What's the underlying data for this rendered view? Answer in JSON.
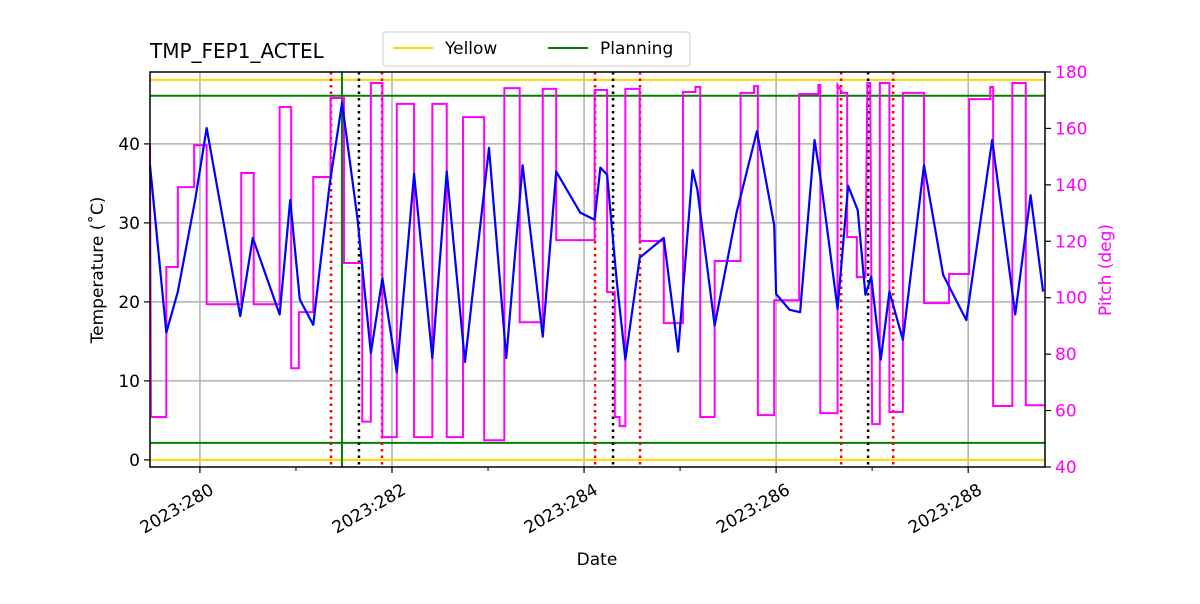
{
  "chart_data": {
    "type": "line",
    "title": "TMP_FEP1_ACTEL",
    "xlabel": "Date",
    "ylabel": "Temperature (˚C)",
    "y2label": "Pitch (deg)",
    "xlim": [
      279.48,
      288.8
    ],
    "ylim": [
      -0.9,
      49.1
    ],
    "y2lim": [
      40,
      180
    ],
    "grid": true,
    "legend_placement": "top-center",
    "x_ticks": [
      280,
      282,
      284,
      286,
      288
    ],
    "x_tick_labels": [
      "2023:280",
      "2023:282",
      "2023:284",
      "2023:286",
      "2023:288"
    ],
    "x_minor_ticks": [
      281,
      283,
      285,
      287
    ],
    "y_ticks": [
      0,
      10,
      20,
      30,
      40
    ],
    "y_tick_labels": [
      "0",
      "10",
      "20",
      "30",
      "40"
    ],
    "y2_ticks": [
      40,
      60,
      80,
      100,
      120,
      140,
      160,
      180
    ],
    "y2_tick_labels": [
      "40",
      "60",
      "80",
      "100",
      "120",
      "140",
      "160",
      "180"
    ],
    "colors": {
      "temperature": "#0000ff",
      "pitch": "#ff00ff",
      "yellow": "#ffd700",
      "planning": "#008000",
      "red_marker": "#ff0000",
      "black_marker": "#000000"
    },
    "legend": [
      {
        "name": "Yellow",
        "color": "#ffd700"
      },
      {
        "name": "Planning",
        "color": "#008000"
      }
    ],
    "limit_lines": {
      "yellow": [
        0,
        48.1
      ],
      "planning": [
        2.15,
        46.1
      ]
    },
    "vertical_lines": {
      "planning": [
        281.479
      ],
      "red_dotted": [
        281.365,
        281.896,
        284.115,
        284.583,
        286.677,
        287.219
      ],
      "black_dotted": [
        281.656,
        284.302,
        286.958
      ]
    },
    "temperature": [
      [
        279.48,
        37.3
      ],
      [
        279.65,
        16.1
      ],
      [
        279.77,
        21.3
      ],
      [
        279.95,
        32.9
      ],
      [
        280.07,
        42.0
      ],
      [
        280.42,
        18.2
      ],
      [
        280.55,
        28.1
      ],
      [
        280.83,
        18.4
      ],
      [
        280.94,
        32.9
      ],
      [
        281.04,
        20.3
      ],
      [
        281.18,
        17.1
      ],
      [
        281.35,
        34.8
      ],
      [
        281.48,
        45.2
      ],
      [
        281.64,
        30.6
      ],
      [
        281.78,
        13.5
      ],
      [
        281.9,
        23.0
      ],
      [
        282.05,
        11.1
      ],
      [
        282.23,
        36.2
      ],
      [
        282.42,
        12.9
      ],
      [
        282.57,
        36.5
      ],
      [
        282.76,
        12.4
      ],
      [
        283.01,
        39.5
      ],
      [
        283.19,
        12.9
      ],
      [
        283.36,
        37.3
      ],
      [
        283.57,
        15.6
      ],
      [
        283.71,
        36.5
      ],
      [
        283.96,
        31.3
      ],
      [
        284.11,
        30.4
      ],
      [
        284.17,
        37.0
      ],
      [
        284.24,
        36.1
      ],
      [
        284.34,
        22.7
      ],
      [
        284.43,
        12.7
      ],
      [
        284.58,
        25.6
      ],
      [
        284.83,
        28.1
      ],
      [
        284.98,
        13.7
      ],
      [
        285.13,
        36.7
      ],
      [
        285.18,
        34.2
      ],
      [
        285.36,
        17.0
      ],
      [
        285.59,
        31.4
      ],
      [
        285.8,
        41.6
      ],
      [
        285.98,
        29.7
      ],
      [
        286.0,
        21.0
      ],
      [
        286.14,
        19.0
      ],
      [
        286.25,
        18.7
      ],
      [
        286.4,
        40.5
      ],
      [
        286.46,
        35.9
      ],
      [
        286.64,
        19.1
      ],
      [
        286.75,
        34.7
      ],
      [
        286.85,
        31.6
      ],
      [
        286.93,
        20.9
      ],
      [
        286.99,
        23.2
      ],
      [
        287.09,
        12.7
      ],
      [
        287.18,
        21.3
      ],
      [
        287.32,
        15.2
      ],
      [
        287.54,
        37.3
      ],
      [
        287.74,
        23.4
      ],
      [
        287.98,
        17.7
      ],
      [
        288.25,
        40.5
      ],
      [
        288.49,
        18.4
      ],
      [
        288.65,
        33.5
      ],
      [
        288.78,
        21.3
      ]
    ],
    "pitch": [
      [
        279.48,
        154
      ],
      [
        279.49,
        57.7
      ],
      [
        279.65,
        57.7
      ],
      [
        279.65,
        110.9
      ],
      [
        279.77,
        110.9
      ],
      [
        279.77,
        139.2
      ],
      [
        279.94,
        139.2
      ],
      [
        279.94,
        154.1
      ],
      [
        280.07,
        154.1
      ],
      [
        280.07,
        97.7
      ],
      [
        280.43,
        97.7
      ],
      [
        280.43,
        144.2
      ],
      [
        280.56,
        144.2
      ],
      [
        280.56,
        97.7
      ],
      [
        280.83,
        97.7
      ],
      [
        280.83,
        167.6
      ],
      [
        280.95,
        167.6
      ],
      [
        280.95,
        75.0
      ],
      [
        281.03,
        75.0
      ],
      [
        281.03,
        94.9
      ],
      [
        281.18,
        94.9
      ],
      [
        281.18,
        142.8
      ],
      [
        281.36,
        142.8
      ],
      [
        281.36,
        170.8
      ],
      [
        281.5,
        170.8
      ],
      [
        281.5,
        112.3
      ],
      [
        281.69,
        112.3
      ],
      [
        281.69,
        56.1
      ],
      [
        281.78,
        56.1
      ],
      [
        281.78,
        176.1
      ],
      [
        281.9,
        176.1
      ],
      [
        281.9,
        50.6
      ],
      [
        282.05,
        50.6
      ],
      [
        282.05,
        168.7
      ],
      [
        282.23,
        168.7
      ],
      [
        282.23,
        50.6
      ],
      [
        282.42,
        50.6
      ],
      [
        282.42,
        168.7
      ],
      [
        282.57,
        168.7
      ],
      [
        282.57,
        50.6
      ],
      [
        282.74,
        50.6
      ],
      [
        282.74,
        164.0
      ],
      [
        282.96,
        164.0
      ],
      [
        282.96,
        49.5
      ],
      [
        283.17,
        49.5
      ],
      [
        283.17,
        174.3
      ],
      [
        283.33,
        174.3
      ],
      [
        283.33,
        91.3
      ],
      [
        283.57,
        91.3
      ],
      [
        283.57,
        174.0
      ],
      [
        283.71,
        174.0
      ],
      [
        283.71,
        120.4
      ],
      [
        284.11,
        120.4
      ],
      [
        284.11,
        173.6
      ],
      [
        284.24,
        173.6
      ],
      [
        284.24,
        102.0
      ],
      [
        284.32,
        102.0
      ],
      [
        284.32,
        57.7
      ],
      [
        284.37,
        57.7
      ],
      [
        284.37,
        54.5
      ],
      [
        284.43,
        54.5
      ],
      [
        284.43,
        174.0
      ],
      [
        284.58,
        174.0
      ],
      [
        284.58,
        120.1
      ],
      [
        284.83,
        120.1
      ],
      [
        284.83,
        91.0
      ],
      [
        285.03,
        91.0
      ],
      [
        285.03,
        172.9
      ],
      [
        285.16,
        172.9
      ],
      [
        285.16,
        174.7
      ],
      [
        285.21,
        174.7
      ],
      [
        285.21,
        57.7
      ],
      [
        285.36,
        57.7
      ],
      [
        285.36,
        113.0
      ],
      [
        285.63,
        113.0
      ],
      [
        285.63,
        172.6
      ],
      [
        285.77,
        172.6
      ],
      [
        285.77,
        175.0
      ],
      [
        285.81,
        175.0
      ],
      [
        285.81,
        58.4
      ],
      [
        285.98,
        58.4
      ],
      [
        285.98,
        99.1
      ],
      [
        286.24,
        99.1
      ],
      [
        286.24,
        172.2
      ],
      [
        286.44,
        172.2
      ],
      [
        286.44,
        175.4
      ],
      [
        286.46,
        175.4
      ],
      [
        286.46,
        59.1
      ],
      [
        286.64,
        59.1
      ],
      [
        286.64,
        175.4
      ],
      [
        286.69,
        172.6
      ],
      [
        286.74,
        172.6
      ],
      [
        286.74,
        121.5
      ],
      [
        286.84,
        121.5
      ],
      [
        286.84,
        107.3
      ],
      [
        286.93,
        107.3
      ],
      [
        286.95,
        176.1
      ],
      [
        286.98,
        176.1
      ],
      [
        287.0,
        55.2
      ],
      [
        287.08,
        55.2
      ],
      [
        287.08,
        176.1
      ],
      [
        287.18,
        176.1
      ],
      [
        287.18,
        59.5
      ],
      [
        287.32,
        59.5
      ],
      [
        287.32,
        172.6
      ],
      [
        287.54,
        172.6
      ],
      [
        287.54,
        98.1
      ],
      [
        287.8,
        98.1
      ],
      [
        287.8,
        108.4
      ],
      [
        288.01,
        108.4
      ],
      [
        288.01,
        170.4
      ],
      [
        288.23,
        170.4
      ],
      [
        288.23,
        174.7
      ],
      [
        288.26,
        174.7
      ],
      [
        288.26,
        61.6
      ],
      [
        288.46,
        61.6
      ],
      [
        288.46,
        176.1
      ],
      [
        288.6,
        176.1
      ],
      [
        288.6,
        61.9
      ],
      [
        288.8,
        61.9
      ]
    ]
  }
}
